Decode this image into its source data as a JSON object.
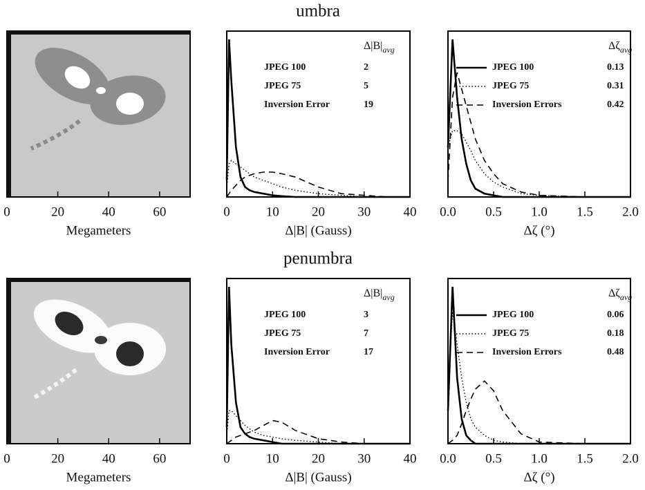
{
  "chart_data": [
    {
      "type": "image",
      "xlim": [
        0,
        72
      ],
      "xticks": [
        0,
        20,
        40,
        60
      ],
      "xlabel": "Megameters"
    },
    {
      "type": "line",
      "title": "umbra",
      "xlabel": "Δ|B| (Gauss)",
      "xlim": [
        0,
        40
      ],
      "xticks": [
        0,
        10,
        20,
        30,
        40
      ],
      "ylim": [
        0,
        1
      ],
      "legend_title": "Δ|B|",
      "legend_title_sub": "avg",
      "legend_lines": false,
      "x": [
        0,
        0.5,
        1,
        2,
        3,
        4,
        5,
        6,
        8,
        10,
        12,
        15,
        20,
        25,
        30,
        35,
        40
      ],
      "series": [
        {
          "name": "JPEG 100",
          "stat": 2,
          "color": "#000",
          "dash": "solid",
          "values": [
            0.1,
            0.95,
            0.7,
            0.3,
            0.12,
            0.06,
            0.04,
            0.03,
            0.02,
            0.01,
            0.005,
            0,
            0,
            0,
            0,
            0,
            0
          ]
        },
        {
          "name": "JPEG 75",
          "stat": 5,
          "color": "#000",
          "dash": "dotted",
          "values": [
            0.05,
            0.2,
            0.22,
            0.2,
            0.18,
            0.16,
            0.14,
            0.12,
            0.1,
            0.08,
            0.06,
            0.04,
            0.02,
            0.01,
            0,
            0,
            0
          ]
        },
        {
          "name": "Inversion Error",
          "stat": 19,
          "color": "#000",
          "dash": "dashed",
          "values": [
            0,
            0.02,
            0.04,
            0.07,
            0.1,
            0.12,
            0.13,
            0.14,
            0.15,
            0.15,
            0.14,
            0.12,
            0.06,
            0.02,
            0.01,
            0,
            0
          ]
        }
      ]
    },
    {
      "type": "line",
      "xlabel": "Δζ (°)",
      "xlim": [
        0,
        2
      ],
      "xticks": [
        {
          "value": 0,
          "label": "0.0"
        },
        {
          "value": 0.5,
          "label": "0.5"
        },
        {
          "value": 1,
          "label": "1.0"
        },
        {
          "value": 1.5,
          "label": "1.5"
        },
        {
          "value": 2,
          "label": "2.0"
        }
      ],
      "ylim": [
        0,
        1
      ],
      "legend_title": "Δζ",
      "legend_title_sub": "avg",
      "legend_lines": true,
      "x": [
        0,
        0.05,
        0.1,
        0.15,
        0.2,
        0.25,
        0.3,
        0.4,
        0.5,
        0.6,
        0.8,
        1.0,
        1.5,
        2.0
      ],
      "series": [
        {
          "name": "JPEG  100",
          "stat": 0.13,
          "color": "#000",
          "dash": "solid",
          "values": [
            0.3,
            0.95,
            0.6,
            0.35,
            0.2,
            0.1,
            0.05,
            0.02,
            0.01,
            0,
            0,
            0,
            0,
            0
          ]
        },
        {
          "name": "JPEG  75",
          "stat": 0.31,
          "color": "#000",
          "dash": "dotted",
          "values": [
            0.3,
            0.4,
            0.4,
            0.38,
            0.33,
            0.28,
            0.22,
            0.14,
            0.09,
            0.06,
            0.02,
            0.01,
            0,
            0
          ]
        },
        {
          "name": "Inversion Errors",
          "stat": 0.42,
          "color": "#000",
          "dash": "dashed",
          "values": [
            0.1,
            0.6,
            0.75,
            0.65,
            0.55,
            0.45,
            0.35,
            0.22,
            0.14,
            0.08,
            0.03,
            0.01,
            0,
            0
          ]
        }
      ]
    },
    {
      "type": "image",
      "xlim": [
        0,
        72
      ],
      "xticks": [
        0,
        20,
        40,
        60
      ],
      "xlabel": "Megameters"
    },
    {
      "type": "line",
      "title": "penumbra",
      "xlabel": "Δ|B| (Gauss)",
      "xlim": [
        0,
        40
      ],
      "xticks": [
        0,
        10,
        20,
        30,
        40
      ],
      "ylim": [
        0,
        1
      ],
      "legend_title": "Δ|B|",
      "legend_title_sub": "avg",
      "legend_lines": false,
      "x": [
        0,
        0.5,
        1,
        2,
        3,
        4,
        5,
        6,
        8,
        10,
        12,
        15,
        20,
        25,
        30,
        35,
        40
      ],
      "series": [
        {
          "name": "JPEG 100",
          "stat": 3,
          "color": "#000",
          "dash": "solid",
          "values": [
            0.1,
            0.95,
            0.6,
            0.25,
            0.1,
            0.06,
            0.04,
            0.03,
            0.02,
            0.01,
            0,
            0,
            0,
            0,
            0,
            0,
            0
          ]
        },
        {
          "name": "JPEG 75",
          "stat": 7,
          "color": "#000",
          "dash": "dotted",
          "values": [
            0.05,
            0.2,
            0.2,
            0.17,
            0.14,
            0.11,
            0.09,
            0.07,
            0.05,
            0.04,
            0.03,
            0.02,
            0.01,
            0,
            0,
            0,
            0
          ]
        },
        {
          "name": "Inversion Error",
          "stat": 17,
          "color": "#000",
          "dash": "dashed",
          "values": [
            0,
            0.01,
            0.02,
            0.04,
            0.05,
            0.06,
            0.07,
            0.08,
            0.11,
            0.14,
            0.13,
            0.08,
            0.03,
            0.01,
            0,
            0,
            0
          ]
        }
      ]
    },
    {
      "type": "line",
      "xlabel": "Δζ (°)",
      "xlim": [
        0,
        2
      ],
      "xticks": [
        {
          "value": 0,
          "label": "0.0"
        },
        {
          "value": 0.5,
          "label": "0.5"
        },
        {
          "value": 1,
          "label": "1.0"
        },
        {
          "value": 1.5,
          "label": "1.5"
        },
        {
          "value": 2,
          "label": "2.0"
        }
      ],
      "ylim": [
        0,
        1
      ],
      "legend_title": "Δζ",
      "legend_title_sub": "avg",
      "legend_lines": true,
      "x": [
        0,
        0.05,
        0.1,
        0.15,
        0.2,
        0.25,
        0.3,
        0.4,
        0.5,
        0.6,
        0.8,
        1.0,
        1.5,
        2.0
      ],
      "series": [
        {
          "name": "JPEG  100",
          "stat": 0.06,
          "color": "#000",
          "dash": "solid",
          "values": [
            0.2,
            0.95,
            0.4,
            0.15,
            0.05,
            0.02,
            0,
            0,
            0,
            0,
            0,
            0,
            0,
            0
          ]
        },
        {
          "name": "JPEG  75",
          "stat": 0.18,
          "color": "#000",
          "dash": "dotted",
          "values": [
            0.3,
            0.8,
            0.6,
            0.4,
            0.25,
            0.15,
            0.1,
            0.05,
            0.02,
            0.01,
            0,
            0,
            0,
            0
          ]
        },
        {
          "name": "Inversion Errors",
          "stat": 0.48,
          "color": "#000",
          "dash": "dashed",
          "values": [
            0,
            0.02,
            0.05,
            0.12,
            0.2,
            0.27,
            0.33,
            0.38,
            0.32,
            0.2,
            0.06,
            0.01,
            0,
            0
          ]
        }
      ]
    }
  ]
}
